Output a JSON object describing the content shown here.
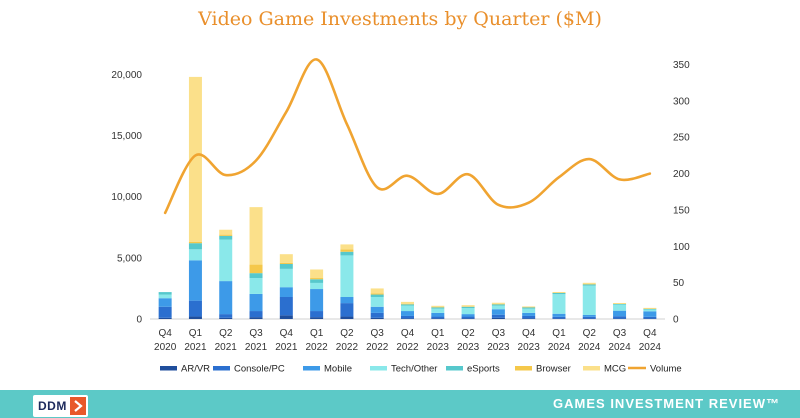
{
  "title": "Video Game Investments by Quarter ($M)",
  "footer": {
    "logo_text": "DDM",
    "brand_text": "GAMES INVESTMENT REVIEW™"
  },
  "colors": {
    "title": "#e98f2b",
    "volume_line": "#f0a431",
    "footer_bg": "#5cc9c7"
  },
  "chart_data": {
    "type": "bar",
    "stacked": true,
    "categories": [
      "Q4 2020",
      "Q1 2021",
      "Q2 2021",
      "Q3 2021",
      "Q4 2021",
      "Q1 2022",
      "Q2 2022",
      "Q3 2022",
      "Q4 2022",
      "Q1 2023",
      "Q2 2023",
      "Q3 2023",
      "Q4 2023",
      "Q1 2024",
      "Q2 2024",
      "Q3 2024",
      "Q4 2024"
    ],
    "category_labels": [
      [
        "Q4",
        "2020"
      ],
      [
        "Q1",
        "2021"
      ],
      [
        "Q2",
        "2021"
      ],
      [
        "Q3",
        "2021"
      ],
      [
        "Q4",
        "2021"
      ],
      [
        "Q1",
        "2022"
      ],
      [
        "Q2",
        "2022"
      ],
      [
        "Q3",
        "2022"
      ],
      [
        "Q4",
        "2022"
      ],
      [
        "Q1",
        "2023"
      ],
      [
        "Q2",
        "2023"
      ],
      [
        "Q3",
        "2023"
      ],
      [
        "Q4",
        "2023"
      ],
      [
        "Q1",
        "2024"
      ],
      [
        "Q2",
        "2024"
      ],
      [
        "Q3",
        "2024"
      ],
      [
        "Q4",
        "2024"
      ]
    ],
    "left_axis": {
      "ylim": [
        0,
        22000
      ],
      "ticks": [
        0,
        5000,
        10000,
        15000,
        20000
      ],
      "tick_labels": [
        "0",
        "5,000",
        "10,000",
        "15,000",
        "20,000"
      ]
    },
    "right_axis": {
      "ylim": [
        0,
        370
      ],
      "ticks": [
        0,
        50,
        100,
        150,
        200,
        250,
        300,
        350
      ],
      "tick_labels": [
        "0",
        "50",
        "100",
        "150",
        "200",
        "250",
        "300",
        "350"
      ]
    },
    "series": [
      {
        "name": "AR/VR",
        "color": "#1f4e9c",
        "axis": "left",
        "values": [
          100,
          200,
          100,
          150,
          300,
          150,
          200,
          100,
          50,
          50,
          50,
          100,
          50,
          30,
          30,
          30,
          30
        ]
      },
      {
        "name": "Console/PC",
        "color": "#2b6fcf",
        "axis": "left",
        "values": [
          900,
          1300,
          300,
          500,
          1500,
          500,
          1100,
          400,
          200,
          150,
          150,
          250,
          200,
          150,
          150,
          200,
          150
        ]
      },
      {
        "name": "Mobile",
        "color": "#3d9ae8",
        "axis": "left",
        "values": [
          700,
          3300,
          2700,
          1400,
          800,
          1800,
          500,
          500,
          400,
          300,
          200,
          450,
          250,
          250,
          150,
          450,
          450
        ]
      },
      {
        "name": "Tech/Other",
        "color": "#8ae8ea",
        "axis": "left",
        "values": [
          300,
          900,
          3400,
          1300,
          1500,
          500,
          3400,
          800,
          450,
          350,
          500,
          300,
          350,
          1600,
          2400,
          500,
          150
        ]
      },
      {
        "name": "eSports",
        "color": "#56c8cc",
        "axis": "left",
        "values": [
          200,
          500,
          300,
          400,
          400,
          300,
          300,
          200,
          100,
          100,
          100,
          100,
          100,
          100,
          100,
          50,
          50
        ]
      },
      {
        "name": "Browser",
        "color": "#f5c84a",
        "axis": "left",
        "values": [
          0,
          100,
          100,
          700,
          100,
          100,
          200,
          100,
          50,
          30,
          30,
          30,
          30,
          30,
          30,
          30,
          30
        ]
      },
      {
        "name": "MCG",
        "color": "#fbe08a",
        "axis": "left",
        "values": [
          0,
          13500,
          400,
          4700,
          700,
          700,
          400,
          400,
          150,
          100,
          100,
          100,
          50,
          50,
          100,
          50,
          50
        ]
      },
      {
        "name": "Volume",
        "color": "#f0a431",
        "axis": "right",
        "type": "line",
        "values": [
          146,
          225,
          198,
          218,
          285,
          357,
          268,
          181,
          197,
          172,
          199,
          157,
          160,
          195,
          220,
          192,
          200
        ]
      }
    ]
  }
}
